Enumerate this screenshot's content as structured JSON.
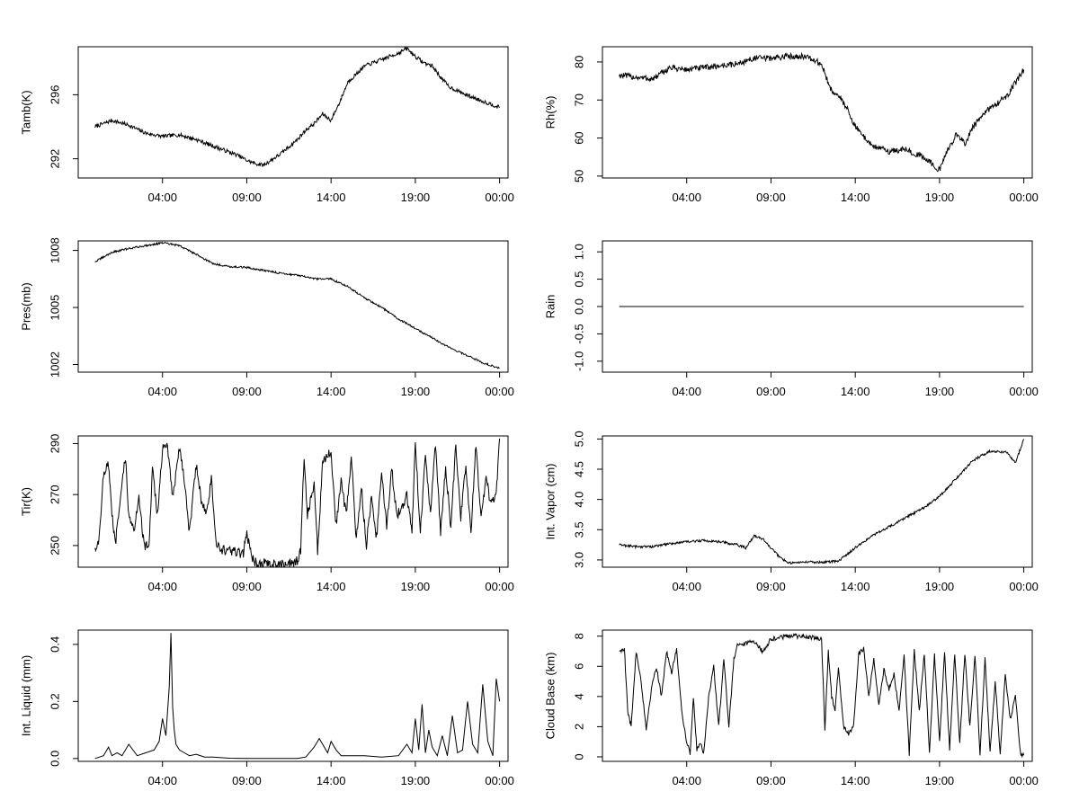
{
  "colors": {
    "line": "#000000",
    "background": "#ffffff"
  },
  "chart_data": [
    {
      "id": "tamb",
      "type": "line",
      "ylabel": "Tamb(K)",
      "xticks": [
        "04:00",
        "09:00",
        "14:00",
        "19:00",
        "00:00"
      ],
      "xrange": [
        -1.0,
        24.5
      ],
      "ylim": [
        290.8,
        299.0
      ],
      "ytick_values": [
        292,
        296
      ],
      "yticks": [
        "292",
        "296"
      ],
      "series": [
        {
          "name": "Tamb",
          "x": [
            0,
            1,
            2,
            3,
            4,
            5,
            6,
            7,
            8,
            8.5,
            9,
            9.5,
            10,
            11,
            12,
            12.5,
            13,
            13.5,
            14,
            14.5,
            15,
            16,
            17,
            18,
            18.5,
            19,
            19.5,
            20,
            20.5,
            21,
            22,
            23,
            24
          ],
          "y": [
            294,
            294.4,
            294.1,
            293.6,
            293.4,
            293.5,
            293.2,
            292.8,
            292.4,
            292.2,
            291.9,
            291.7,
            291.6,
            292.3,
            293.2,
            293.8,
            294.2,
            294.8,
            294.4,
            295.5,
            296.8,
            297.8,
            298.2,
            298.6,
            298.9,
            298.4,
            298.0,
            297.8,
            297.1,
            296.5,
            296.0,
            295.6,
            295.2
          ],
          "noise": 0.12
        }
      ]
    },
    {
      "id": "rh",
      "type": "line",
      "ylabel": "Rh(%)",
      "xticks": [
        "04:00",
        "09:00",
        "14:00",
        "19:00",
        "00:00"
      ],
      "xrange": [
        -1.0,
        24.5
      ],
      "ylim": [
        49.5,
        84.0
      ],
      "ytick_values": [
        50,
        60,
        70,
        80
      ],
      "yticks": [
        "50",
        "60",
        "70",
        "80"
      ],
      "series": [
        {
          "name": "Rh",
          "x": [
            0,
            1,
            2,
            3,
            4,
            5,
            6,
            7,
            8,
            9,
            10,
            11,
            12,
            12.5,
            13,
            13.5,
            14,
            15,
            16,
            17,
            18,
            18.5,
            19,
            19.5,
            20,
            20.5,
            21,
            22,
            23,
            24
          ],
          "y": [
            76.5,
            76,
            75.5,
            78.5,
            78,
            78.5,
            79,
            79.5,
            81,
            81,
            81.5,
            81.5,
            79.5,
            73,
            71,
            68,
            63,
            58,
            56.5,
            57,
            55,
            53.5,
            51.5,
            57,
            61,
            58.5,
            63,
            68,
            71,
            78
          ],
          "noise": 0.8
        }
      ]
    },
    {
      "id": "pres",
      "type": "line",
      "ylabel": "Pres(mb)",
      "xticks": [
        "04:00",
        "09:00",
        "14:00",
        "19:00",
        "00:00"
      ],
      "xrange": [
        -1.0,
        24.5
      ],
      "ylim": [
        1001.6,
        1008.5
      ],
      "ytick_values": [
        1002,
        1005,
        1008
      ],
      "yticks": [
        "1002",
        "1005",
        "1008"
      ],
      "series": [
        {
          "name": "Pres",
          "x": [
            0,
            1,
            2,
            3,
            4,
            5,
            6,
            7,
            8,
            9,
            10,
            11,
            12,
            13,
            14,
            15,
            16,
            17,
            18,
            19,
            20,
            21,
            22,
            23,
            24
          ],
          "y": [
            1007.4,
            1007.9,
            1008.1,
            1008.25,
            1008.4,
            1008.25,
            1007.8,
            1007.3,
            1007.15,
            1007.1,
            1006.95,
            1006.8,
            1006.7,
            1006.5,
            1006.5,
            1006.1,
            1005.5,
            1005.0,
            1004.4,
            1003.9,
            1003.4,
            1002.9,
            1002.5,
            1002.1,
            1001.8
          ],
          "noise": 0.05
        }
      ]
    },
    {
      "id": "rain",
      "type": "line",
      "ylabel": "Rain",
      "xticks": [
        "04:00",
        "09:00",
        "14:00",
        "19:00",
        "00:00"
      ],
      "xrange": [
        -1.0,
        24.5
      ],
      "ylim": [
        -1.2,
        1.2
      ],
      "ytick_values": [
        -1.0,
        -0.5,
        0.0,
        0.5,
        1.0
      ],
      "yticks": [
        "-1.0",
        "-0.5",
        "0.0",
        "0.5",
        "1.0"
      ],
      "series": [
        {
          "name": "Rain",
          "x": [
            0,
            24
          ],
          "y": [
            0,
            0
          ],
          "noise": 0
        }
      ]
    },
    {
      "id": "tir",
      "type": "line",
      "ylabel": "Tir(K)",
      "xticks": [
        "04:00",
        "09:00",
        "14:00",
        "19:00",
        "00:00"
      ],
      "xrange": [
        -1.0,
        24.5
      ],
      "ylim": [
        241.5,
        293.0
      ],
      "ytick_values": [
        250,
        270,
        290
      ],
      "yticks": [
        "250",
        "270",
        "290"
      ],
      "series": [
        {
          "name": "Tir",
          "x": [
            0,
            0.2,
            0.5,
            0.8,
            1,
            1.2,
            1.5,
            1.8,
            2,
            2.3,
            2.6,
            2.9,
            3.2,
            3.4,
            3.7,
            4,
            4.3,
            4.6,
            5,
            5.3,
            5.6,
            6,
            6.3,
            6.6,
            6.9,
            7.2,
            7.5,
            8,
            8.5,
            8.8,
            9,
            9.3,
            9.6,
            10,
            10.5,
            11,
            11.5,
            12,
            12.2,
            12.4,
            12.6,
            12.8,
            13,
            13.2,
            13.5,
            13.8,
            14,
            14.3,
            14.6,
            14.9,
            15.2,
            15.5,
            15.8,
            16.1,
            16.4,
            16.7,
            17,
            17.3,
            17.6,
            17.9,
            18.2,
            18.5,
            18.8,
            19,
            19.3,
            19.6,
            19.9,
            20.2,
            20.5,
            20.8,
            21.1,
            21.4,
            21.7,
            22,
            22.3,
            22.6,
            22.9,
            23.2,
            23.5,
            23.8,
            24
          ],
          "y": [
            249.5,
            250,
            278,
            282,
            262,
            250,
            268,
            285,
            262,
            255,
            270,
            250,
            249,
            280,
            262,
            288,
            289,
            268,
            289,
            276,
            255,
            282,
            268,
            262,
            276,
            250,
            248,
            248,
            247,
            247,
            255,
            245,
            243,
            243,
            242.5,
            242.5,
            243,
            244,
            248,
            285,
            262,
            268,
            275,
            248,
            282,
            286,
            285,
            258,
            275,
            262,
            285,
            252,
            273,
            250,
            270,
            253,
            279,
            258,
            280,
            262,
            265,
            270,
            255,
            290,
            255,
            285,
            262,
            290,
            255,
            281,
            257,
            290,
            261,
            282,
            255,
            290,
            260,
            276,
            266,
            270,
            292
          ],
          "noise": 2.0
        }
      ]
    },
    {
      "id": "vapor",
      "type": "line",
      "ylabel": "Int. Vapor (cm)",
      "xticks": [
        "04:00",
        "09:00",
        "14:00",
        "19:00",
        "00:00"
      ],
      "xrange": [
        -1.0,
        24.5
      ],
      "ylim": [
        2.88,
        5.05
      ],
      "ytick_values": [
        3.0,
        3.5,
        4.0,
        4.5,
        5.0
      ],
      "yticks": [
        "3.0",
        "3.5",
        "4.0",
        "4.5",
        "5.0"
      ],
      "series": [
        {
          "name": "Int. Vapor",
          "x": [
            0,
            1,
            2,
            3,
            4,
            5,
            6,
            7,
            7.5,
            8,
            8.5,
            9,
            9.5,
            10,
            11,
            12,
            13,
            14,
            15,
            16,
            17,
            18,
            19,
            20,
            21,
            22,
            23,
            23.5,
            24
          ],
          "y": [
            3.25,
            3.22,
            3.22,
            3.27,
            3.3,
            3.32,
            3.3,
            3.25,
            3.2,
            3.4,
            3.35,
            3.2,
            3.05,
            2.95,
            2.97,
            2.96,
            2.98,
            3.2,
            3.4,
            3.55,
            3.7,
            3.85,
            4.05,
            4.35,
            4.65,
            4.8,
            4.78,
            4.6,
            5.0
          ],
          "noise": 0.02
        }
      ]
    },
    {
      "id": "liquid",
      "type": "line",
      "ylabel": "Int. Liquid (mm)",
      "xticks": [
        "04:00",
        "09:00",
        "14:00",
        "19:00",
        "00:00"
      ],
      "xrange": [
        -1.0,
        24.5
      ],
      "ylim": [
        -0.01,
        0.45
      ],
      "ytick_values": [
        0.0,
        0.2,
        0.4
      ],
      "yticks": [
        "0.0",
        "0.2",
        "0.4"
      ],
      "series": [
        {
          "name": "Int. Liquid",
          "x": [
            0,
            0.5,
            0.8,
            1,
            1.3,
            1.6,
            2,
            2.5,
            3,
            3.5,
            3.8,
            4,
            4.2,
            4.4,
            4.5,
            4.6,
            4.7,
            4.8,
            5,
            5.3,
            5.6,
            6,
            6.5,
            7,
            8,
            9,
            10,
            11,
            12,
            12.5,
            13,
            13.3,
            13.5,
            13.8,
            14,
            14.3,
            14.6,
            15,
            16,
            17,
            18,
            18.5,
            18.8,
            19,
            19.2,
            19.4,
            19.6,
            19.8,
            20,
            20.3,
            20.6,
            20.9,
            21.2,
            21.5,
            21.8,
            22.1,
            22.4,
            22.7,
            23,
            23.3,
            23.6,
            23.8,
            24
          ],
          "y": [
            0,
            0.01,
            0.04,
            0.01,
            0.02,
            0.01,
            0.05,
            0.01,
            0.02,
            0.03,
            0.06,
            0.14,
            0.08,
            0.25,
            0.44,
            0.18,
            0.1,
            0.05,
            0.03,
            0.02,
            0.01,
            0.015,
            0.005,
            0.005,
            0.001,
            0.0,
            0.0,
            0.0,
            0.0,
            0.005,
            0.04,
            0.07,
            0.05,
            0.02,
            0.06,
            0.03,
            0.01,
            0.01,
            0.01,
            0.005,
            0.01,
            0.05,
            0.02,
            0.14,
            0.03,
            0.19,
            0.02,
            0.1,
            0.04,
            0.01,
            0.08,
            0.01,
            0.15,
            0.02,
            0.03,
            0.2,
            0.05,
            0.02,
            0.26,
            0.06,
            0.01,
            0.28,
            0.2
          ],
          "noise": 0.0
        }
      ]
    },
    {
      "id": "cloudbase",
      "type": "line",
      "ylabel": "Cloud Base (km)",
      "xticks": [
        "04:00",
        "09:00",
        "14:00",
        "19:00",
        "00:00"
      ],
      "xrange": [
        -1.0,
        24.5
      ],
      "ylim": [
        -0.3,
        8.4
      ],
      "ytick_values": [
        0,
        2,
        4,
        6,
        8
      ],
      "yticks": [
        "0",
        "2",
        "4",
        "6",
        "8"
      ],
      "series": [
        {
          "name": "Cloud Base",
          "x": [
            0,
            0.3,
            0.5,
            0.7,
            1,
            1.3,
            1.6,
            1.9,
            2.2,
            2.5,
            2.8,
            3.1,
            3.4,
            3.7,
            4,
            4.2,
            4.4,
            4.6,
            4.8,
            5,
            5.3,
            5.6,
            5.9,
            6.2,
            6.5,
            6.8,
            7,
            7.5,
            8,
            8.5,
            9,
            9.5,
            10,
            10.5,
            11,
            11.5,
            12,
            12.2,
            12.4,
            12.6,
            12.8,
            13,
            13.3,
            13.6,
            13.9,
            14.2,
            14.5,
            14.8,
            15.1,
            15.4,
            15.7,
            16,
            16.3,
            16.6,
            16.9,
            17.2,
            17.5,
            17.8,
            18.1,
            18.4,
            18.7,
            19,
            19.3,
            19.6,
            19.9,
            20.2,
            20.5,
            20.8,
            21.1,
            21.4,
            21.7,
            22,
            22.3,
            22.6,
            22.9,
            23.2,
            23.5,
            23.8,
            24
          ],
          "y": [
            7.0,
            7.2,
            3.0,
            2.0,
            7.0,
            5.0,
            1.8,
            4.5,
            6.0,
            4.0,
            7.0,
            5.5,
            7.2,
            3.0,
            1.0,
            0.2,
            4.0,
            0.5,
            1.0,
            0.2,
            4.0,
            6.0,
            2.0,
            6.5,
            2.0,
            6.5,
            7.5,
            7.5,
            7.7,
            7.0,
            7.8,
            7.9,
            8.0,
            8.0,
            8.0,
            7.9,
            7.8,
            1.8,
            7.0,
            4.0,
            3.0,
            6.0,
            2.0,
            1.5,
            2.0,
            6.8,
            7.2,
            4.0,
            6.5,
            3.5,
            5.8,
            4.5,
            5.5,
            3.0,
            6.8,
            0.2,
            7.0,
            3.0,
            6.9,
            0.3,
            6.8,
            1.0,
            6.9,
            0.5,
            6.9,
            0.8,
            6.9,
            2.0,
            6.8,
            0.2,
            6.5,
            0.3,
            5.0,
            0.2,
            5.5,
            2.5,
            4.0,
            0.2,
            0.1
          ],
          "noise": 0.15
        }
      ]
    }
  ]
}
